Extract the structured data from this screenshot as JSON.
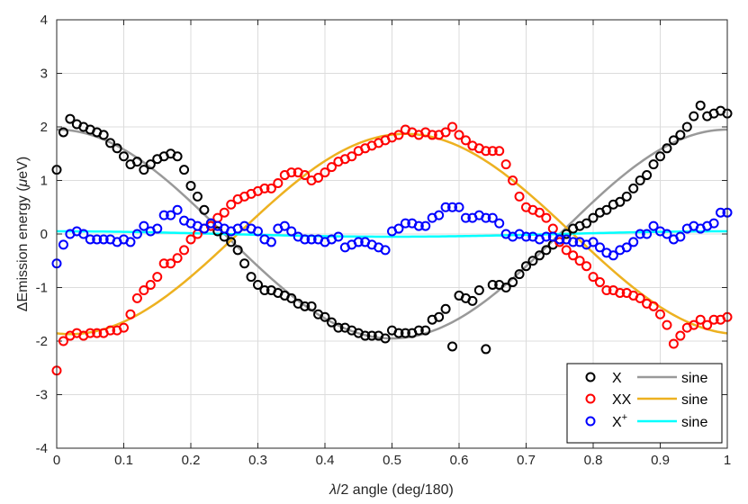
{
  "chart_data": {
    "type": "scatter",
    "xlabel_parts": [
      "λ",
      "/2 angle (deg/180)"
    ],
    "ylabel_parts": [
      "ΔEmission energy (",
      "μ",
      "eV)"
    ],
    "xlim": [
      0,
      1
    ],
    "ylim": [
      -4,
      4
    ],
    "x_ticks": [
      "0",
      "0.1",
      "0.2",
      "0.3",
      "0.4",
      "0.5",
      "0.6",
      "0.7",
      "0.8",
      "0.9",
      "1"
    ],
    "y_ticks": [
      "-4",
      "-3",
      "-2",
      "-1",
      "0",
      "1",
      "2",
      "3",
      "4"
    ],
    "grid": true,
    "legend_position": "bottom-right",
    "series": [
      {
        "name": "X",
        "kind": "points",
        "color": "#000000",
        "x": [
          0.0,
          0.01,
          0.02,
          0.03,
          0.04,
          0.05,
          0.06,
          0.07,
          0.08,
          0.09,
          0.1,
          0.11,
          0.12,
          0.13,
          0.14,
          0.15,
          0.16,
          0.17,
          0.18,
          0.19,
          0.2,
          0.21,
          0.22,
          0.23,
          0.24,
          0.25,
          0.26,
          0.27,
          0.28,
          0.29,
          0.3,
          0.31,
          0.32,
          0.33,
          0.34,
          0.35,
          0.36,
          0.37,
          0.38,
          0.39,
          0.4,
          0.41,
          0.42,
          0.43,
          0.44,
          0.45,
          0.46,
          0.47,
          0.48,
          0.49,
          0.5,
          0.51,
          0.52,
          0.53,
          0.54,
          0.55,
          0.56,
          0.57,
          0.58,
          0.59,
          0.6,
          0.61,
          0.62,
          0.63,
          0.64,
          0.65,
          0.66,
          0.67,
          0.68,
          0.69,
          0.7,
          0.71,
          0.72,
          0.73,
          0.74,
          0.75,
          0.76,
          0.77,
          0.78,
          0.79,
          0.8,
          0.81,
          0.82,
          0.83,
          0.84,
          0.85,
          0.86,
          0.87,
          0.88,
          0.89,
          0.9,
          0.91,
          0.92,
          0.93,
          0.94,
          0.95,
          0.96,
          0.97,
          0.98,
          0.99,
          1.0
        ],
        "y": [
          1.2,
          1.9,
          2.15,
          2.05,
          2.0,
          1.95,
          1.9,
          1.85,
          1.7,
          1.6,
          1.45,
          1.3,
          1.35,
          1.2,
          1.3,
          1.4,
          1.45,
          1.5,
          1.45,
          1.2,
          0.9,
          0.7,
          0.45,
          0.2,
          0.05,
          -0.05,
          -0.15,
          -0.3,
          -0.55,
          -0.8,
          -0.95,
          -1.05,
          -1.05,
          -1.1,
          -1.15,
          -1.2,
          -1.3,
          -1.35,
          -1.35,
          -1.5,
          -1.55,
          -1.65,
          -1.75,
          -1.75,
          -1.8,
          -1.85,
          -1.9,
          -1.9,
          -1.9,
          -1.95,
          -1.8,
          -1.85,
          -1.85,
          -1.85,
          -1.8,
          -1.8,
          -1.6,
          -1.55,
          -1.4,
          -2.1,
          -1.15,
          -1.2,
          -1.25,
          -1.05,
          -2.15,
          -0.95,
          -0.95,
          -1.0,
          -0.9,
          -0.75,
          -0.6,
          -0.5,
          -0.4,
          -0.3,
          -0.2,
          -0.1,
          0.0,
          0.1,
          0.15,
          0.2,
          0.3,
          0.4,
          0.45,
          0.55,
          0.6,
          0.7,
          0.85,
          1.0,
          1.1,
          1.3,
          1.45,
          1.6,
          1.75,
          1.85,
          2.0,
          2.2,
          2.4,
          2.2,
          2.25,
          2.3,
          2.25
        ]
      },
      {
        "name": "XX",
        "kind": "points",
        "color": "#ff0000",
        "x": [
          0.0,
          0.01,
          0.02,
          0.03,
          0.04,
          0.05,
          0.06,
          0.07,
          0.08,
          0.09,
          0.1,
          0.11,
          0.12,
          0.13,
          0.14,
          0.15,
          0.16,
          0.17,
          0.18,
          0.19,
          0.2,
          0.21,
          0.22,
          0.23,
          0.24,
          0.25,
          0.26,
          0.27,
          0.28,
          0.29,
          0.3,
          0.31,
          0.32,
          0.33,
          0.34,
          0.35,
          0.36,
          0.37,
          0.38,
          0.39,
          0.4,
          0.41,
          0.42,
          0.43,
          0.44,
          0.45,
          0.46,
          0.47,
          0.48,
          0.49,
          0.5,
          0.51,
          0.52,
          0.53,
          0.54,
          0.55,
          0.56,
          0.57,
          0.58,
          0.59,
          0.6,
          0.61,
          0.62,
          0.63,
          0.64,
          0.65,
          0.66,
          0.67,
          0.68,
          0.69,
          0.7,
          0.71,
          0.72,
          0.73,
          0.74,
          0.75,
          0.76,
          0.77,
          0.78,
          0.79,
          0.8,
          0.81,
          0.82,
          0.83,
          0.84,
          0.85,
          0.86,
          0.87,
          0.88,
          0.89,
          0.9,
          0.91,
          0.92,
          0.93,
          0.94,
          0.95,
          0.96,
          0.97,
          0.98,
          0.99,
          1.0
        ],
        "y": [
          -2.55,
          -2.0,
          -1.9,
          -1.85,
          -1.9,
          -1.85,
          -1.85,
          -1.85,
          -1.8,
          -1.8,
          -1.75,
          -1.5,
          -1.2,
          -1.05,
          -0.95,
          -0.8,
          -0.55,
          -0.55,
          -0.45,
          -0.3,
          -0.1,
          0.0,
          0.1,
          0.15,
          0.3,
          0.4,
          0.55,
          0.65,
          0.7,
          0.75,
          0.8,
          0.85,
          0.85,
          0.95,
          1.1,
          1.15,
          1.15,
          1.1,
          1.0,
          1.05,
          1.15,
          1.25,
          1.35,
          1.4,
          1.45,
          1.55,
          1.6,
          1.65,
          1.7,
          1.75,
          1.8,
          1.85,
          1.95,
          1.9,
          1.85,
          1.9,
          1.85,
          1.85,
          1.9,
          2.0,
          1.85,
          1.75,
          1.65,
          1.6,
          1.55,
          1.55,
          1.55,
          1.3,
          1.0,
          0.7,
          0.5,
          0.45,
          0.4,
          0.3,
          0.1,
          -0.15,
          -0.3,
          -0.4,
          -0.5,
          -0.6,
          -0.8,
          -0.9,
          -1.05,
          -1.05,
          -1.1,
          -1.1,
          -1.15,
          -1.2,
          -1.3,
          -1.35,
          -1.5,
          -1.7,
          -2.05,
          -1.9,
          -1.75,
          -1.7,
          -1.6,
          -1.7,
          -1.6,
          -1.6,
          -1.55
        ]
      },
      {
        "name": "X⁺",
        "kind": "points",
        "color": "#0000ff",
        "x": [
          0.0,
          0.01,
          0.02,
          0.03,
          0.04,
          0.05,
          0.06,
          0.07,
          0.08,
          0.09,
          0.1,
          0.11,
          0.12,
          0.13,
          0.14,
          0.15,
          0.16,
          0.17,
          0.18,
          0.19,
          0.2,
          0.21,
          0.22,
          0.23,
          0.24,
          0.25,
          0.26,
          0.27,
          0.28,
          0.29,
          0.3,
          0.31,
          0.32,
          0.33,
          0.34,
          0.35,
          0.36,
          0.37,
          0.38,
          0.39,
          0.4,
          0.41,
          0.42,
          0.43,
          0.44,
          0.45,
          0.46,
          0.47,
          0.48,
          0.49,
          0.5,
          0.51,
          0.52,
          0.53,
          0.54,
          0.55,
          0.56,
          0.57,
          0.58,
          0.59,
          0.6,
          0.61,
          0.62,
          0.63,
          0.64,
          0.65,
          0.66,
          0.67,
          0.68,
          0.69,
          0.7,
          0.71,
          0.72,
          0.73,
          0.74,
          0.75,
          0.76,
          0.77,
          0.78,
          0.79,
          0.8,
          0.81,
          0.82,
          0.83,
          0.84,
          0.85,
          0.86,
          0.87,
          0.88,
          0.89,
          0.9,
          0.91,
          0.92,
          0.93,
          0.94,
          0.95,
          0.96,
          0.97,
          0.98,
          0.99,
          1.0
        ],
        "y": [
          -0.55,
          -0.2,
          0.0,
          0.05,
          0.0,
          -0.1,
          -0.1,
          -0.1,
          -0.1,
          -0.15,
          -0.1,
          -0.15,
          0.0,
          0.15,
          0.05,
          0.1,
          0.35,
          0.35,
          0.45,
          0.25,
          0.2,
          0.15,
          0.1,
          0.2,
          0.15,
          0.1,
          0.05,
          0.1,
          0.15,
          0.1,
          0.05,
          -0.1,
          -0.15,
          0.1,
          0.15,
          0.05,
          -0.05,
          -0.1,
          -0.1,
          -0.1,
          -0.15,
          -0.1,
          -0.05,
          -0.25,
          -0.2,
          -0.15,
          -0.15,
          -0.2,
          -0.25,
          -0.3,
          0.05,
          0.1,
          0.2,
          0.2,
          0.15,
          0.15,
          0.3,
          0.35,
          0.5,
          0.5,
          0.5,
          0.3,
          0.3,
          0.35,
          0.3,
          0.3,
          0.2,
          0.0,
          -0.05,
          0.0,
          -0.05,
          -0.05,
          -0.1,
          -0.05,
          -0.05,
          -0.1,
          -0.1,
          -0.15,
          -0.15,
          -0.2,
          -0.15,
          -0.25,
          -0.35,
          -0.4,
          -0.3,
          -0.25,
          -0.15,
          0.0,
          0.0,
          0.15,
          0.05,
          0.0,
          -0.1,
          -0.05,
          0.1,
          0.15,
          0.1,
          0.15,
          0.2,
          0.4,
          0.4
        ]
      },
      {
        "name": "sine",
        "kind": "line",
        "color": "#999999",
        "amplitude": 1.95,
        "phase_shift": 0,
        "sign": 1
      },
      {
        "name": "sine",
        "kind": "line",
        "color": "#edb120",
        "amplitude": 1.87,
        "phase_shift": 0.02,
        "sign": -1
      },
      {
        "name": "sine",
        "kind": "line",
        "color": "#00ffff",
        "amplitude": 0.05,
        "phase_shift": 0.0,
        "sign": 1
      }
    ],
    "legend": [
      {
        "marker_label": "X",
        "line_label": "sine"
      },
      {
        "marker_label": "XX",
        "line_label": "sine"
      },
      {
        "marker_label": "X",
        "marker_sup": "+",
        "line_label": "sine"
      }
    ]
  }
}
